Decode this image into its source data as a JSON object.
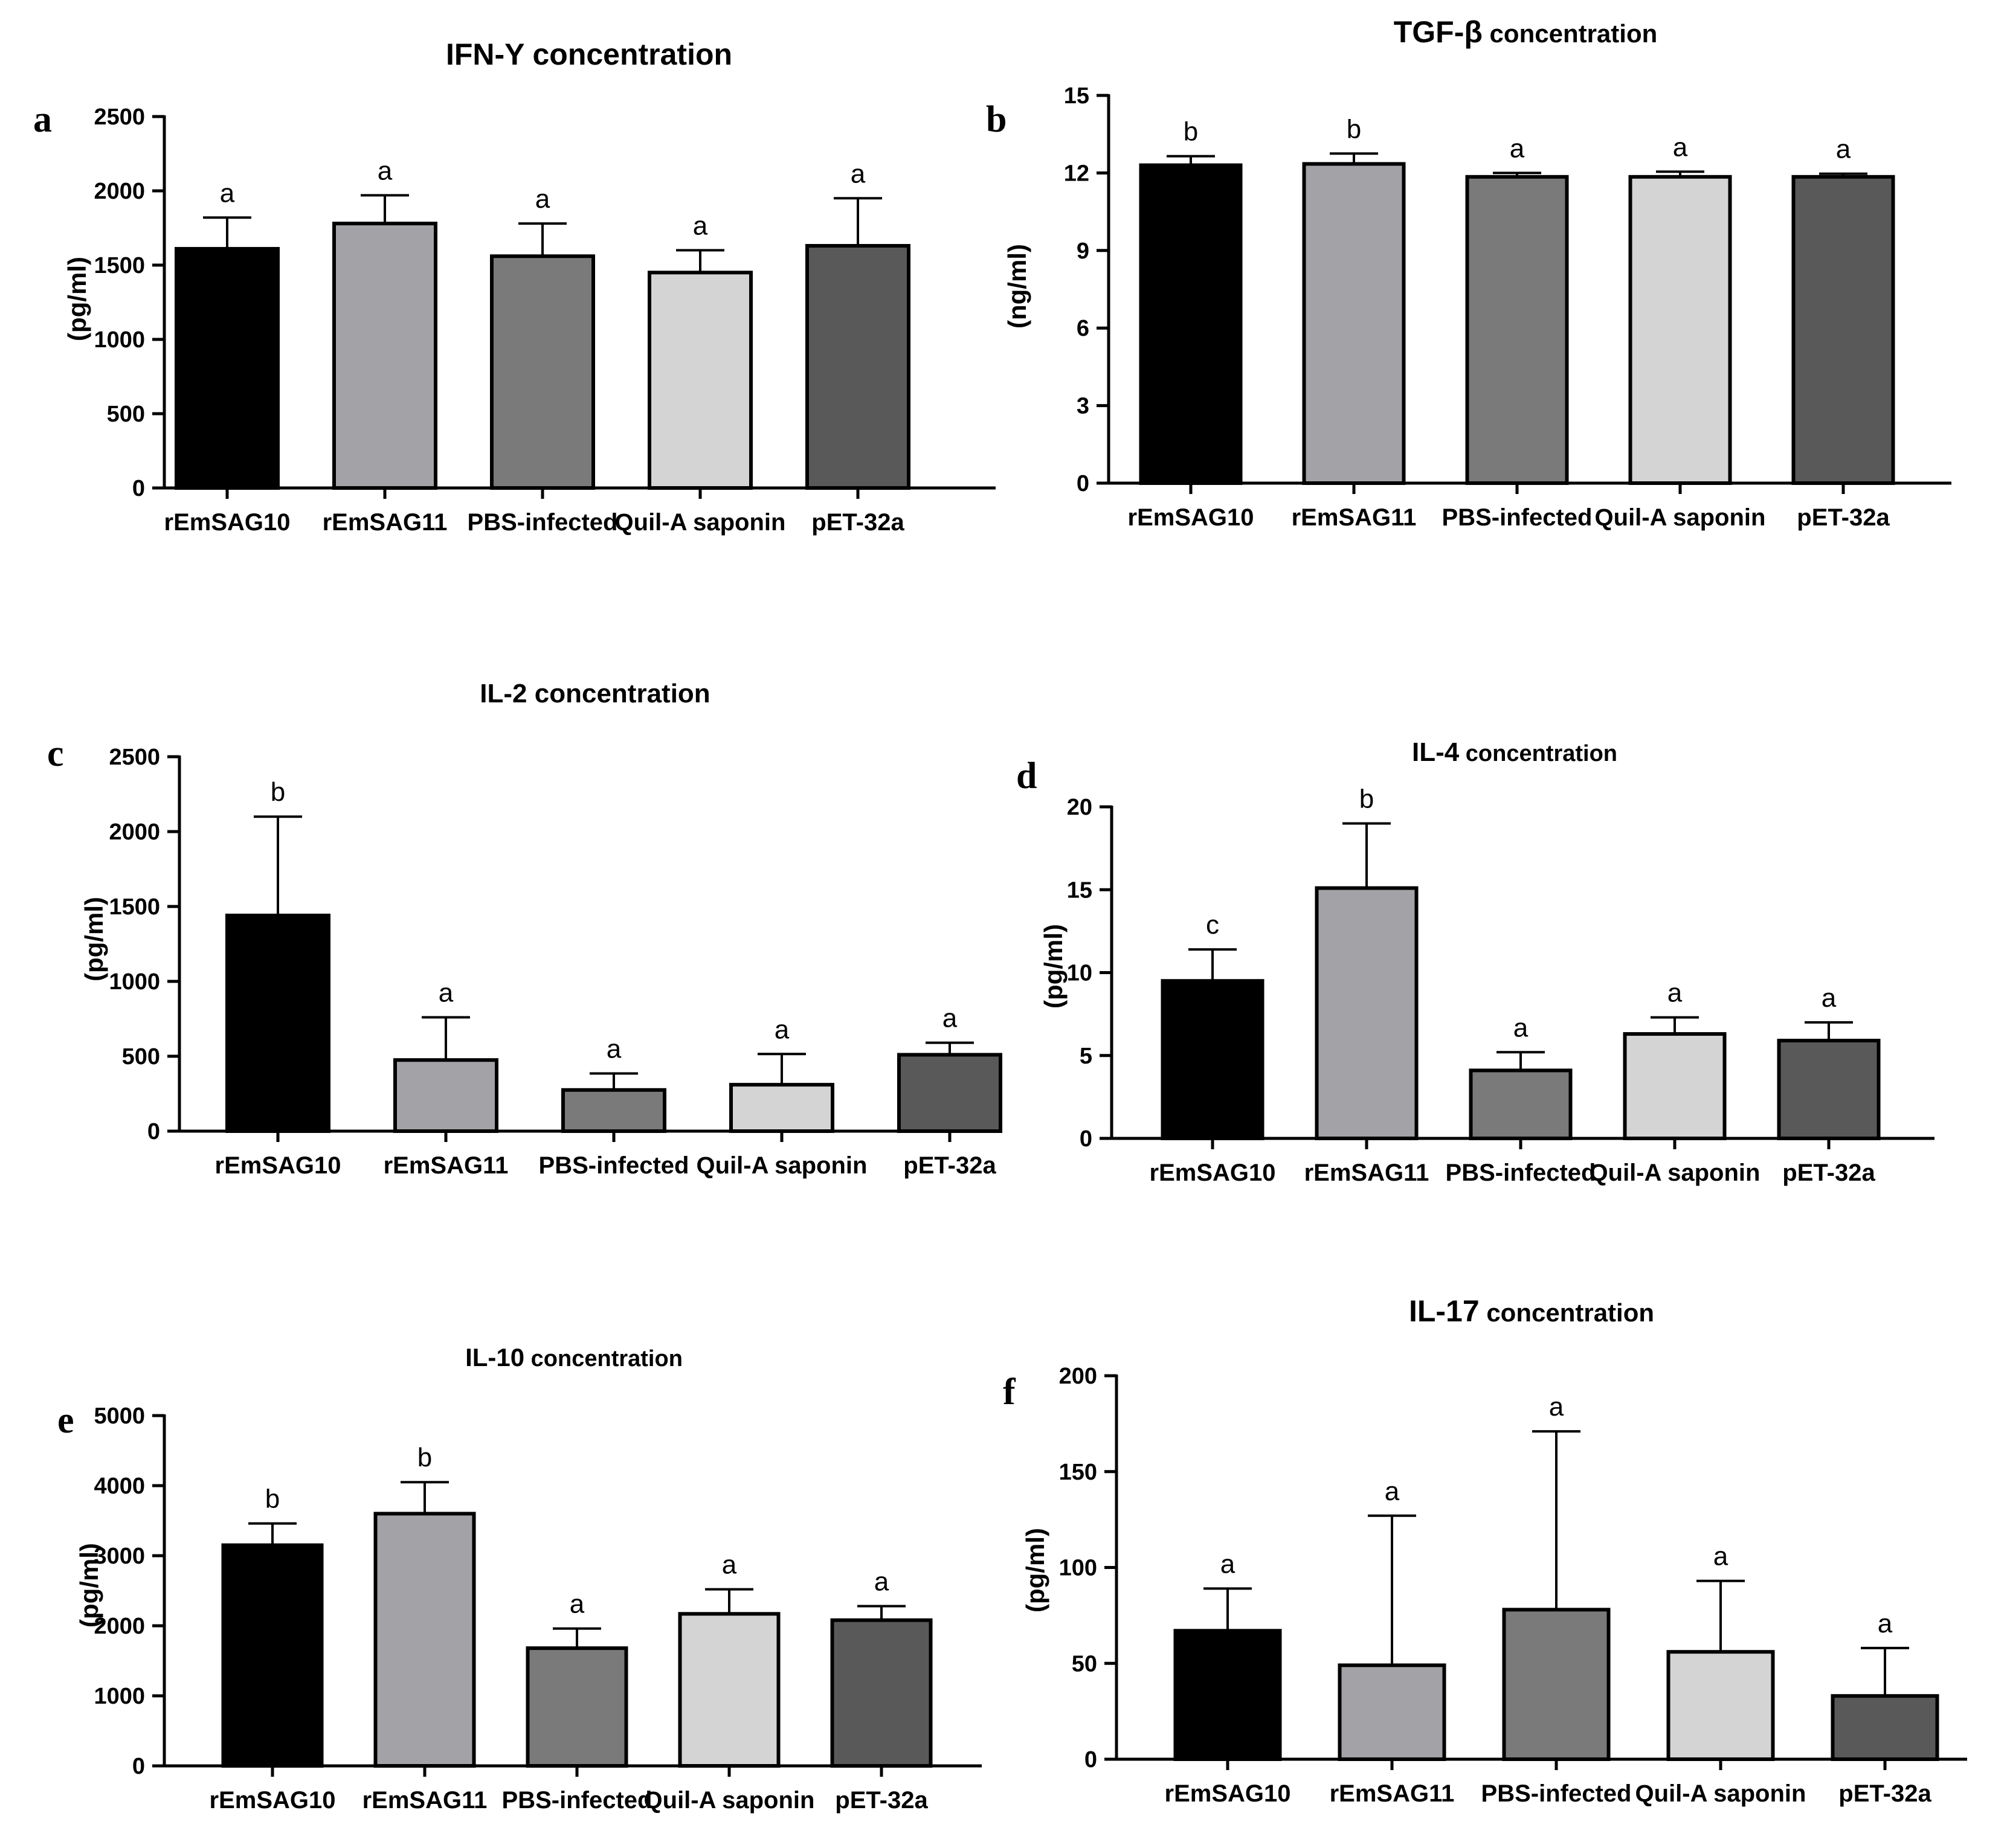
{
  "chart_data": [
    {
      "panel": "a",
      "type": "bar",
      "title_main": "IFN-Y",
      "title_rest": " concentration",
      "ylabel": "(pg/ml)",
      "categories": [
        "rEmSAG10",
        "rEmSAG11",
        "PBS-infected",
        "Quil-A saponin",
        "pET-32a"
      ],
      "values": [
        1610,
        1780,
        1560,
        1450,
        1630
      ],
      "errors": [
        210,
        190,
        220,
        150,
        320
      ],
      "significance": [
        "a",
        "a",
        "a",
        "a",
        "a"
      ],
      "ylim": [
        0,
        2500
      ],
      "yticks": [
        0,
        500,
        1000,
        1500,
        2000,
        2500
      ],
      "colors": [
        "#000000",
        "#a3a2a6",
        "#7a7a7a",
        "#d4d4d4",
        "#595959"
      ]
    },
    {
      "panel": "b",
      "type": "bar",
      "title_main": "TGF-β",
      "title_rest": " concentration",
      "ylabel": "(ng/ml)",
      "categories": [
        "rEmSAG10",
        "rEmSAG11",
        "PBS-infected",
        "Quil-A saponin",
        "pET-32a"
      ],
      "values": [
        12.3,
        12.35,
        11.85,
        11.85,
        11.85
      ],
      "errors": [
        0.35,
        0.4,
        0.15,
        0.2,
        0.12
      ],
      "significance": [
        "b",
        "b",
        "a",
        "a",
        "a"
      ],
      "ylim": [
        0,
        15
      ],
      "yticks": [
        0,
        3,
        6,
        9,
        12,
        15
      ],
      "colors": [
        "#000000",
        "#a3a2a6",
        "#7a7a7a",
        "#d4d4d4",
        "#595959"
      ]
    },
    {
      "panel": "c",
      "type": "bar",
      "title_main": "IL-2",
      "title_rest": " concentration",
      "ylabel": "(pg/ml)",
      "categories": [
        "rEmSAG10",
        "rEmSAG11",
        "PBS-infected",
        "Quil-A saponin",
        "pET-32a"
      ],
      "values": [
        1440,
        475,
        275,
        310,
        510
      ],
      "errors": [
        660,
        285,
        110,
        205,
        80
      ],
      "significance": [
        "b",
        "a",
        "a",
        "a",
        "a"
      ],
      "ylim": [
        0,
        2500
      ],
      "yticks": [
        0,
        500,
        1000,
        1500,
        2000,
        2500
      ],
      "colors": [
        "#000000",
        "#a3a2a6",
        "#7a7a7a",
        "#d4d4d4",
        "#595959"
      ]
    },
    {
      "panel": "d",
      "type": "bar",
      "title_main": "IL-4",
      "title_rest": " concentration",
      "ylabel": "(pg/ml)",
      "categories": [
        "rEmSAG10",
        "rEmSAG11",
        "PBS-infected",
        "Quil-A saponin",
        "pET-32a"
      ],
      "values": [
        9.5,
        15.1,
        4.1,
        6.3,
        5.9
      ],
      "errors": [
        1.9,
        3.9,
        1.1,
        1.0,
        1.1
      ],
      "significance": [
        "c",
        "b",
        "a",
        "a",
        "a"
      ],
      "ylim": [
        0,
        20
      ],
      "yticks": [
        0,
        5,
        10,
        15,
        20
      ],
      "colors": [
        "#000000",
        "#a3a2a6",
        "#7a7a7a",
        "#d4d4d4",
        "#595959"
      ]
    },
    {
      "panel": "e",
      "type": "bar",
      "title_main": "IL-10",
      "title_rest": " concentration",
      "ylabel": "(pg/ml)",
      "categories": [
        "rEmSAG10",
        "rEmSAG11",
        "PBS-infected",
        "Quil-A saponin",
        "pET-32a"
      ],
      "values": [
        3150,
        3600,
        1680,
        2170,
        2080
      ],
      "errors": [
        310,
        450,
        280,
        350,
        200
      ],
      "significance": [
        "b",
        "b",
        "a",
        "a",
        "a"
      ],
      "ylim": [
        0,
        5000
      ],
      "yticks": [
        0,
        1000,
        2000,
        3000,
        4000,
        5000
      ],
      "colors": [
        "#000000",
        "#a3a2a6",
        "#7a7a7a",
        "#d4d4d4",
        "#595959"
      ]
    },
    {
      "panel": "f",
      "type": "bar",
      "title_main": "IL-17",
      "title_rest": " concentration",
      "ylabel": "(pg/ml)",
      "categories": [
        "rEmSAG10",
        "rEmSAG11",
        "PBS-infected",
        "Quil-A saponin",
        "pET-32a"
      ],
      "values": [
        67,
        49,
        78,
        56,
        33
      ],
      "errors": [
        22,
        78,
        93,
        37,
        25
      ],
      "significance": [
        "a",
        "a",
        "a",
        "a",
        "a"
      ],
      "ylim": [
        0,
        200
      ],
      "yticks": [
        0,
        50,
        100,
        150,
        200
      ],
      "colors": [
        "#000000",
        "#a3a2a6",
        "#7a7a7a",
        "#d4d4d4",
        "#595959"
      ]
    }
  ]
}
